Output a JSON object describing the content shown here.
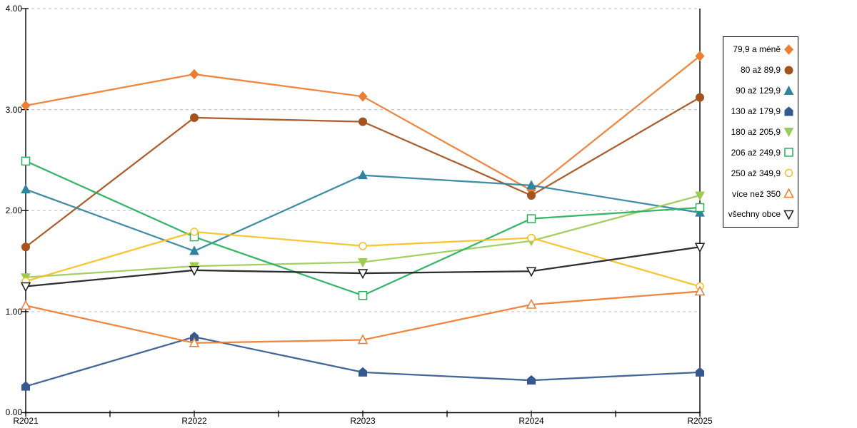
{
  "chart_data": {
    "type": "line",
    "title": "",
    "xlabel": "",
    "ylabel": "",
    "categories": [
      "R2021",
      "R2022",
      "R2023",
      "R2024",
      "R2025"
    ],
    "y_tick_labels": [
      "0.00",
      "1.00",
      "2.00",
      "3.00",
      "4.00"
    ],
    "ylim": [
      0,
      4
    ],
    "grid": "horizontal-dashed-at-integers",
    "legend_position": "right-outside-boxed",
    "series": [
      {
        "name": "79,9 a méně",
        "marker": "diamond-filled",
        "color": "#ED7D31",
        "values": [
          3.04,
          3.35,
          3.13,
          2.2,
          3.53
        ]
      },
      {
        "name": "80 až 89,9",
        "marker": "circle-filled",
        "color": "#A5521D",
        "values": [
          1.64,
          2.92,
          2.88,
          2.15,
          3.12
        ]
      },
      {
        "name": "90 až 129,9",
        "marker": "triangle-up-filled",
        "color": "#31839E",
        "values": [
          2.21,
          1.6,
          2.35,
          2.25,
          1.98
        ]
      },
      {
        "name": "130 až 179,9",
        "marker": "pentagon-filled",
        "color": "#35598F",
        "values": [
          0.26,
          0.75,
          0.4,
          0.32,
          0.4
        ]
      },
      {
        "name": "180 až 205,9",
        "marker": "triangle-down-filled",
        "color": "#9CCB56",
        "values": [
          1.34,
          1.45,
          1.49,
          1.7,
          2.15
        ]
      },
      {
        "name": "206 až 249,9",
        "marker": "square-open",
        "color": "#28B05C",
        "values": [
          2.49,
          1.74,
          1.16,
          1.92,
          2.03
        ]
      },
      {
        "name": "250 až 349,9",
        "marker": "circle-open",
        "color": "#F6C125",
        "values": [
          1.3,
          1.79,
          1.65,
          1.73,
          1.25
        ]
      },
      {
        "name": "více než 350",
        "marker": "triangle-up-open",
        "color": "#ED7D31",
        "values": [
          1.06,
          0.69,
          0.72,
          1.07,
          1.2
        ]
      },
      {
        "name": "všechny obce",
        "marker": "triangle-down-open",
        "color": "#1C1C1C",
        "values": [
          1.25,
          1.41,
          1.38,
          1.4,
          1.64
        ]
      }
    ],
    "colors": {
      "grid": "#C8C8C8",
      "axis": "#000000",
      "background": "#FFFFFF"
    }
  }
}
